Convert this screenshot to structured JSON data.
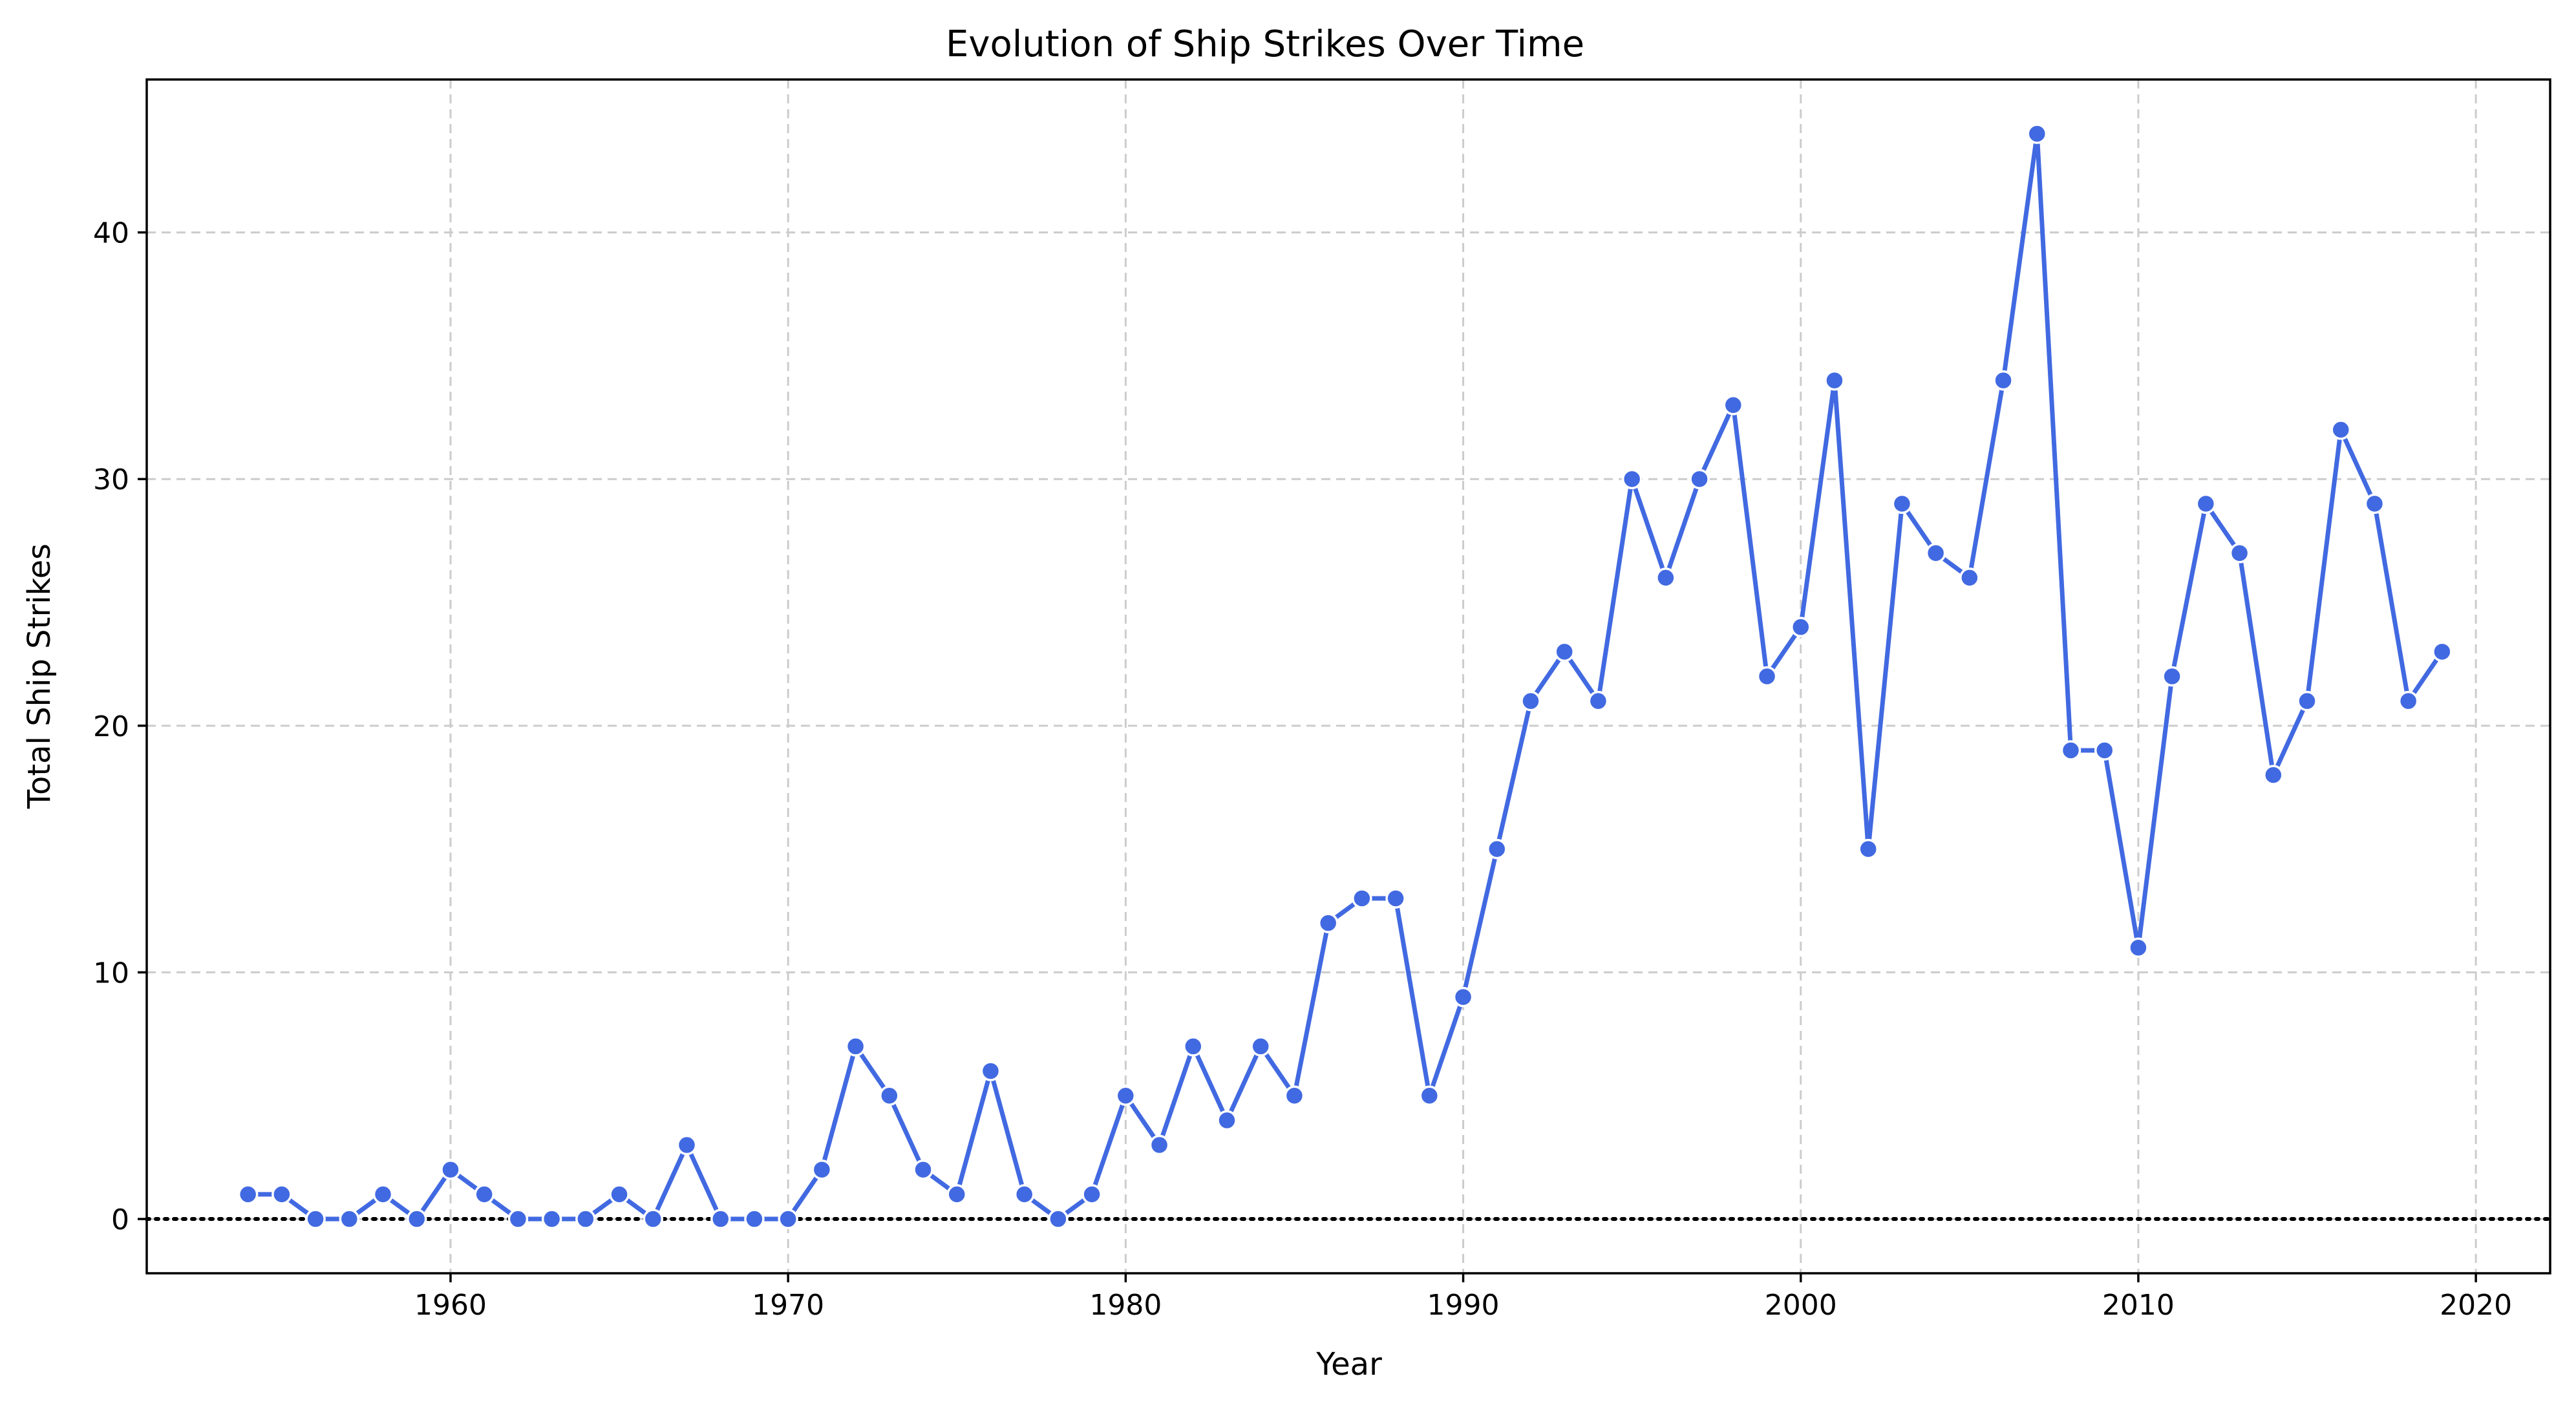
{
  "chart_data": {
    "type": "line",
    "title": "Evolution of Ship Strikes Over Time",
    "xlabel": "Year",
    "ylabel": "Total Ship Strikes",
    "xlim": [
      1951,
      2022.2
    ],
    "ylim": [
      -2.2,
      46.2
    ],
    "xticks": [
      1960,
      1970,
      1980,
      1990,
      2000,
      2010,
      2020
    ],
    "yticks": [
      0,
      10,
      20,
      30,
      40
    ],
    "grid": true,
    "reference_line": {
      "y": 0,
      "style": "dotted",
      "color": "#000000"
    },
    "series": [
      {
        "color": "#4169e1",
        "x": [
          1954,
          1955,
          1956,
          1957,
          1958,
          1959,
          1960,
          1961,
          1962,
          1963,
          1964,
          1965,
          1966,
          1967,
          1968,
          1969,
          1970,
          1971,
          1972,
          1973,
          1974,
          1975,
          1976,
          1977,
          1978,
          1979,
          1980,
          1981,
          1982,
          1983,
          1984,
          1985,
          1986,
          1987,
          1988,
          1989,
          1990,
          1991,
          1992,
          1993,
          1994,
          1995,
          1996,
          1997,
          1998,
          1999,
          2000,
          2001,
          2002,
          2003,
          2004,
          2005,
          2006,
          2007,
          2008,
          2009,
          2010,
          2011,
          2012,
          2013,
          2014,
          2015,
          2016,
          2017,
          2018,
          2019
        ],
        "y": [
          1,
          1,
          0,
          0,
          1,
          0,
          2,
          1,
          0,
          0,
          0,
          1,
          0,
          3,
          0,
          0,
          0,
          2,
          7,
          5,
          2,
          1,
          6,
          1,
          0,
          1,
          5,
          3,
          7,
          4,
          7,
          5,
          12,
          13,
          13,
          5,
          9,
          15,
          21,
          23,
          21,
          30,
          26,
          30,
          33,
          22,
          24,
          34,
          15,
          29,
          27,
          26,
          34,
          44,
          19,
          19,
          11,
          22,
          29,
          27,
          18,
          21,
          32,
          29,
          21,
          23
        ]
      }
    ]
  }
}
